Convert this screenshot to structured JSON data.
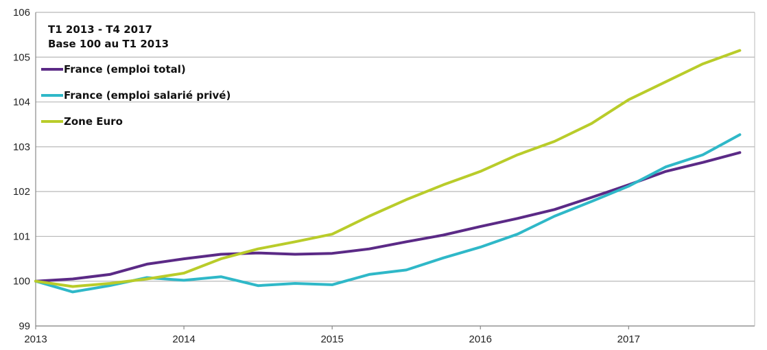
{
  "chart_data": {
    "type": "line",
    "title": "T1 2013 - T4 2017",
    "subtitle": "Base 100 au T1 2013",
    "xlabel": "",
    "ylabel": "",
    "ylim": [
      99,
      106
    ],
    "yticks": [
      "99",
      "100",
      "101",
      "102",
      "103",
      "104",
      "105",
      "106"
    ],
    "xlim": [
      2013,
      2017.85
    ],
    "xticks": [
      "2013",
      "2014",
      "2015",
      "2016",
      "2017"
    ],
    "grid": "horizontal",
    "legend": "top-left",
    "x": [
      2013.0,
      2013.25,
      2013.5,
      2013.75,
      2014.0,
      2014.25,
      2014.5,
      2014.75,
      2015.0,
      2015.25,
      2015.5,
      2015.75,
      2016.0,
      2016.25,
      2016.5,
      2016.75,
      2017.0,
      2017.25,
      2017.5,
      2017.75
    ],
    "series": [
      {
        "name": "France (emploi total)",
        "color": "#5b2a86",
        "values": [
          100.0,
          100.05,
          100.15,
          100.38,
          100.5,
          100.6,
          100.63,
          100.6,
          100.62,
          100.72,
          100.88,
          101.03,
          101.22,
          101.4,
          101.6,
          101.87,
          102.15,
          102.45,
          102.65,
          102.87
        ]
      },
      {
        "name": "France (emploi salarié privé)",
        "color": "#2fb8c8",
        "values": [
          100.0,
          99.76,
          99.9,
          100.08,
          100.02,
          100.1,
          99.9,
          99.95,
          99.92,
          100.15,
          100.25,
          100.52,
          100.76,
          101.05,
          101.45,
          101.78,
          102.12,
          102.55,
          102.82,
          103.27
        ]
      },
      {
        "name": "Zone Euro",
        "color": "#b9cc2a",
        "values": [
          100.0,
          99.88,
          99.95,
          100.05,
          100.18,
          100.5,
          100.72,
          100.88,
          101.05,
          101.45,
          101.82,
          102.15,
          102.45,
          102.82,
          103.12,
          103.52,
          104.05,
          104.45,
          104.85,
          105.15
        ]
      }
    ]
  }
}
